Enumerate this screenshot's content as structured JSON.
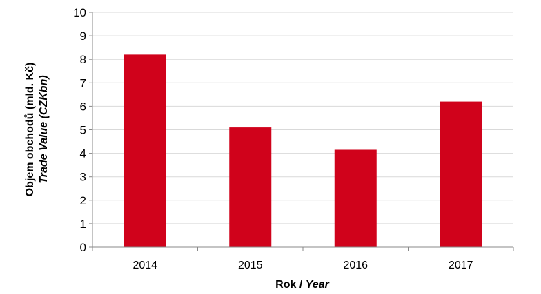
{
  "chart_data": {
    "type": "bar",
    "categories": [
      "2014",
      "2015",
      "2016",
      "2017"
    ],
    "values": [
      8.2,
      5.1,
      4.15,
      6.2
    ],
    "ylim": [
      0,
      10
    ],
    "yticks": [
      0,
      1,
      2,
      3,
      4,
      5,
      6,
      7,
      8,
      9,
      10
    ],
    "grid": true,
    "legend": "none",
    "bar_color": "#d0021b",
    "grid_color": "#d9d9d9",
    "axis_color": "#888888",
    "xlabel": {
      "main": "Rok / ",
      "italic": "Year"
    },
    "ylabel": {
      "line1": "Objem obchodů (mld. Kč)",
      "line2": "Trade Value (CZKbn)"
    }
  }
}
